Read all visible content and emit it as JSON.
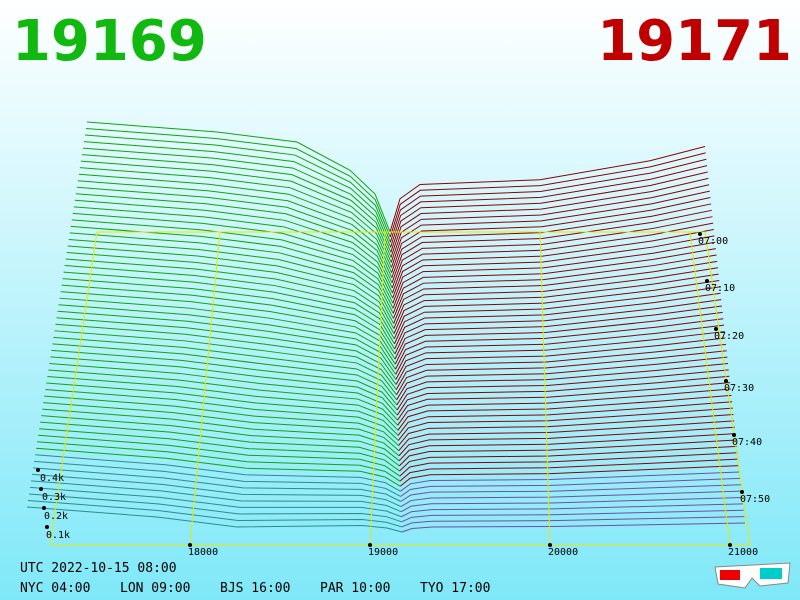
{
  "header": {
    "bid": "19169",
    "ask": "19171"
  },
  "price_axis": [
    "18000",
    "19000",
    "20000",
    "21000"
  ],
  "volume_axis": [
    "0.4k",
    "0.3k",
    "0.2k",
    "0.1k"
  ],
  "time_axis": [
    "07:00",
    "07:10",
    "07:20",
    "07:30",
    "07:40",
    "07:50"
  ],
  "footer": {
    "utc": "UTC 2022-10-15 08:00",
    "zones": [
      "NYC 04:00",
      "LON 09:00",
      "BJS 16:00",
      "PAR 10:00",
      "TYO 17:00"
    ]
  }
}
